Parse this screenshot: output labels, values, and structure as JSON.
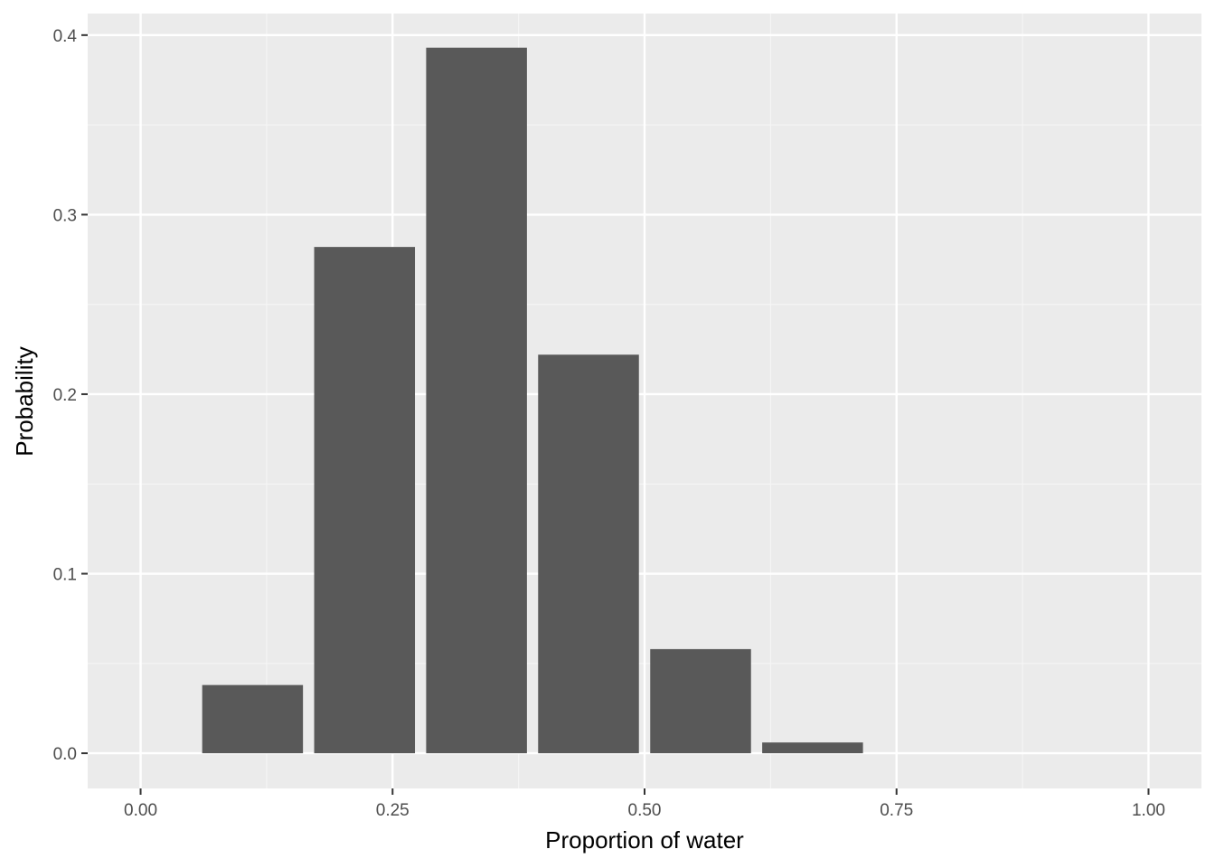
{
  "chart_data": {
    "type": "bar",
    "x": [
      0.1111,
      0.2222,
      0.3333,
      0.4444,
      0.5556,
      0.6667,
      0.7778,
      0.8889,
      1.0
    ],
    "values": [
      0.038,
      0.282,
      0.393,
      0.222,
      0.058,
      0.006,
      0.0,
      0.0,
      0.0
    ],
    "bar_width": 0.1,
    "title": "",
    "xlabel": "Proportion of water",
    "ylabel": "Probability",
    "xlim": [
      -0.0525,
      1.0525
    ],
    "ylim": [
      -0.0196,
      0.412
    ],
    "x_ticks": [
      0,
      0.25,
      0.5,
      0.75,
      1.0
    ],
    "x_tick_labels": [
      "0.00",
      "0.25",
      "0.50",
      "0.75",
      "1.00"
    ],
    "y_ticks": [
      0,
      0.1,
      0.2,
      0.3,
      0.4
    ],
    "y_tick_labels": [
      "0.0",
      "0.1",
      "0.2",
      "0.3",
      "0.4"
    ],
    "grid": true,
    "legend": "none",
    "colors": {
      "panel_background": "#ebebeb",
      "grid_major": "#ffffff",
      "grid_minor": "#f5f5f5",
      "bar_fill": "#595959",
      "tick_text": "#4d4d4d",
      "axis_tick": "#333333"
    }
  }
}
